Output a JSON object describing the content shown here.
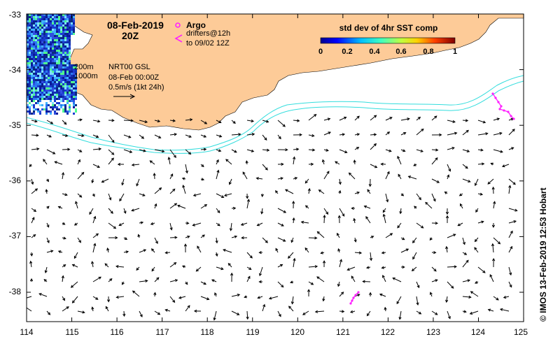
{
  "map": {
    "date_line1": "08-Feb-2019",
    "date_line2": "20Z",
    "argo_label": "Argo",
    "drifters_line1": "drifters@12h",
    "drifters_line2": "to 09/02 12Z",
    "isobath1": "200m",
    "isobath2": "1000m",
    "nrt_line1": "NRT00 GSL",
    "nrt_line2": "08-Feb 00:00Z",
    "nrt_line3": "0.5m/s (1kt 24h)",
    "side_credit": "© IMOS 13-Feb-2019 12:53 Hobart",
    "colorbar": {
      "title": "std dev of 4hr SST comp",
      "ticks": [
        "0",
        "0.2",
        "0.4",
        "0.6",
        "0.8",
        "1"
      ]
    },
    "x_ticks": [
      "114",
      "115",
      "116",
      "117",
      "118",
      "119",
      "120",
      "121",
      "122",
      "123",
      "124",
      "125"
    ],
    "y_ticks": [
      "-33",
      "-34",
      "-35",
      "-36",
      "-37",
      "-38"
    ],
    "colors": {
      "land": "#fdcb98",
      "isobath": "#33dddd",
      "argo_drifter": "#ff22ff",
      "arrow": "#000000"
    }
  }
}
